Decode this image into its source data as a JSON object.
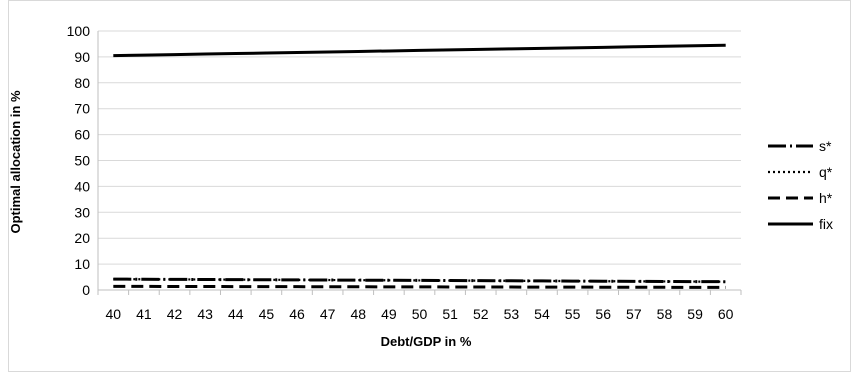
{
  "chart_data": {
    "type": "line",
    "title": "",
    "xlabel": "Debt/GDP in %",
    "ylabel": "Optimal allocation in %",
    "x": [
      40,
      41,
      42,
      43,
      44,
      45,
      46,
      47,
      48,
      49,
      50,
      51,
      52,
      53,
      54,
      55,
      56,
      57,
      58,
      59,
      60
    ],
    "ylim": [
      0,
      100
    ],
    "yticks": [
      0,
      10,
      20,
      30,
      40,
      50,
      60,
      70,
      80,
      90,
      100
    ],
    "grid": true,
    "legend_position": "right",
    "series": [
      {
        "name": "s*",
        "style": "long-dash-dot",
        "values": [
          4.2,
          4.15,
          4.1,
          4.05,
          4.0,
          3.95,
          3.9,
          3.85,
          3.8,
          3.75,
          3.7,
          3.65,
          3.6,
          3.55,
          3.5,
          3.45,
          3.4,
          3.35,
          3.3,
          3.25,
          3.2
        ]
      },
      {
        "name": "q*",
        "style": "dotted",
        "values": [
          4.2,
          4.15,
          4.1,
          4.05,
          4.0,
          3.95,
          3.9,
          3.85,
          3.8,
          3.75,
          3.7,
          3.65,
          3.6,
          3.55,
          3.5,
          3.45,
          3.4,
          3.35,
          3.3,
          3.25,
          3.2
        ]
      },
      {
        "name": "h*",
        "style": "dashed",
        "values": [
          1.4,
          1.38,
          1.36,
          1.34,
          1.32,
          1.3,
          1.28,
          1.26,
          1.24,
          1.22,
          1.2,
          1.18,
          1.16,
          1.14,
          1.12,
          1.1,
          1.08,
          1.06,
          1.04,
          1.02,
          1.0
        ]
      },
      {
        "name": "fix",
        "style": "solid",
        "values": [
          90.5,
          90.7,
          90.9,
          91.1,
          91.3,
          91.5,
          91.7,
          91.9,
          92.1,
          92.3,
          92.5,
          92.7,
          92.9,
          93.1,
          93.3,
          93.5,
          93.7,
          93.9,
          94.1,
          94.3,
          94.5
        ]
      }
    ],
    "colors": {
      "series": "#000000",
      "grid": "#d9d9d9",
      "axis": "#bfbfbf"
    }
  }
}
